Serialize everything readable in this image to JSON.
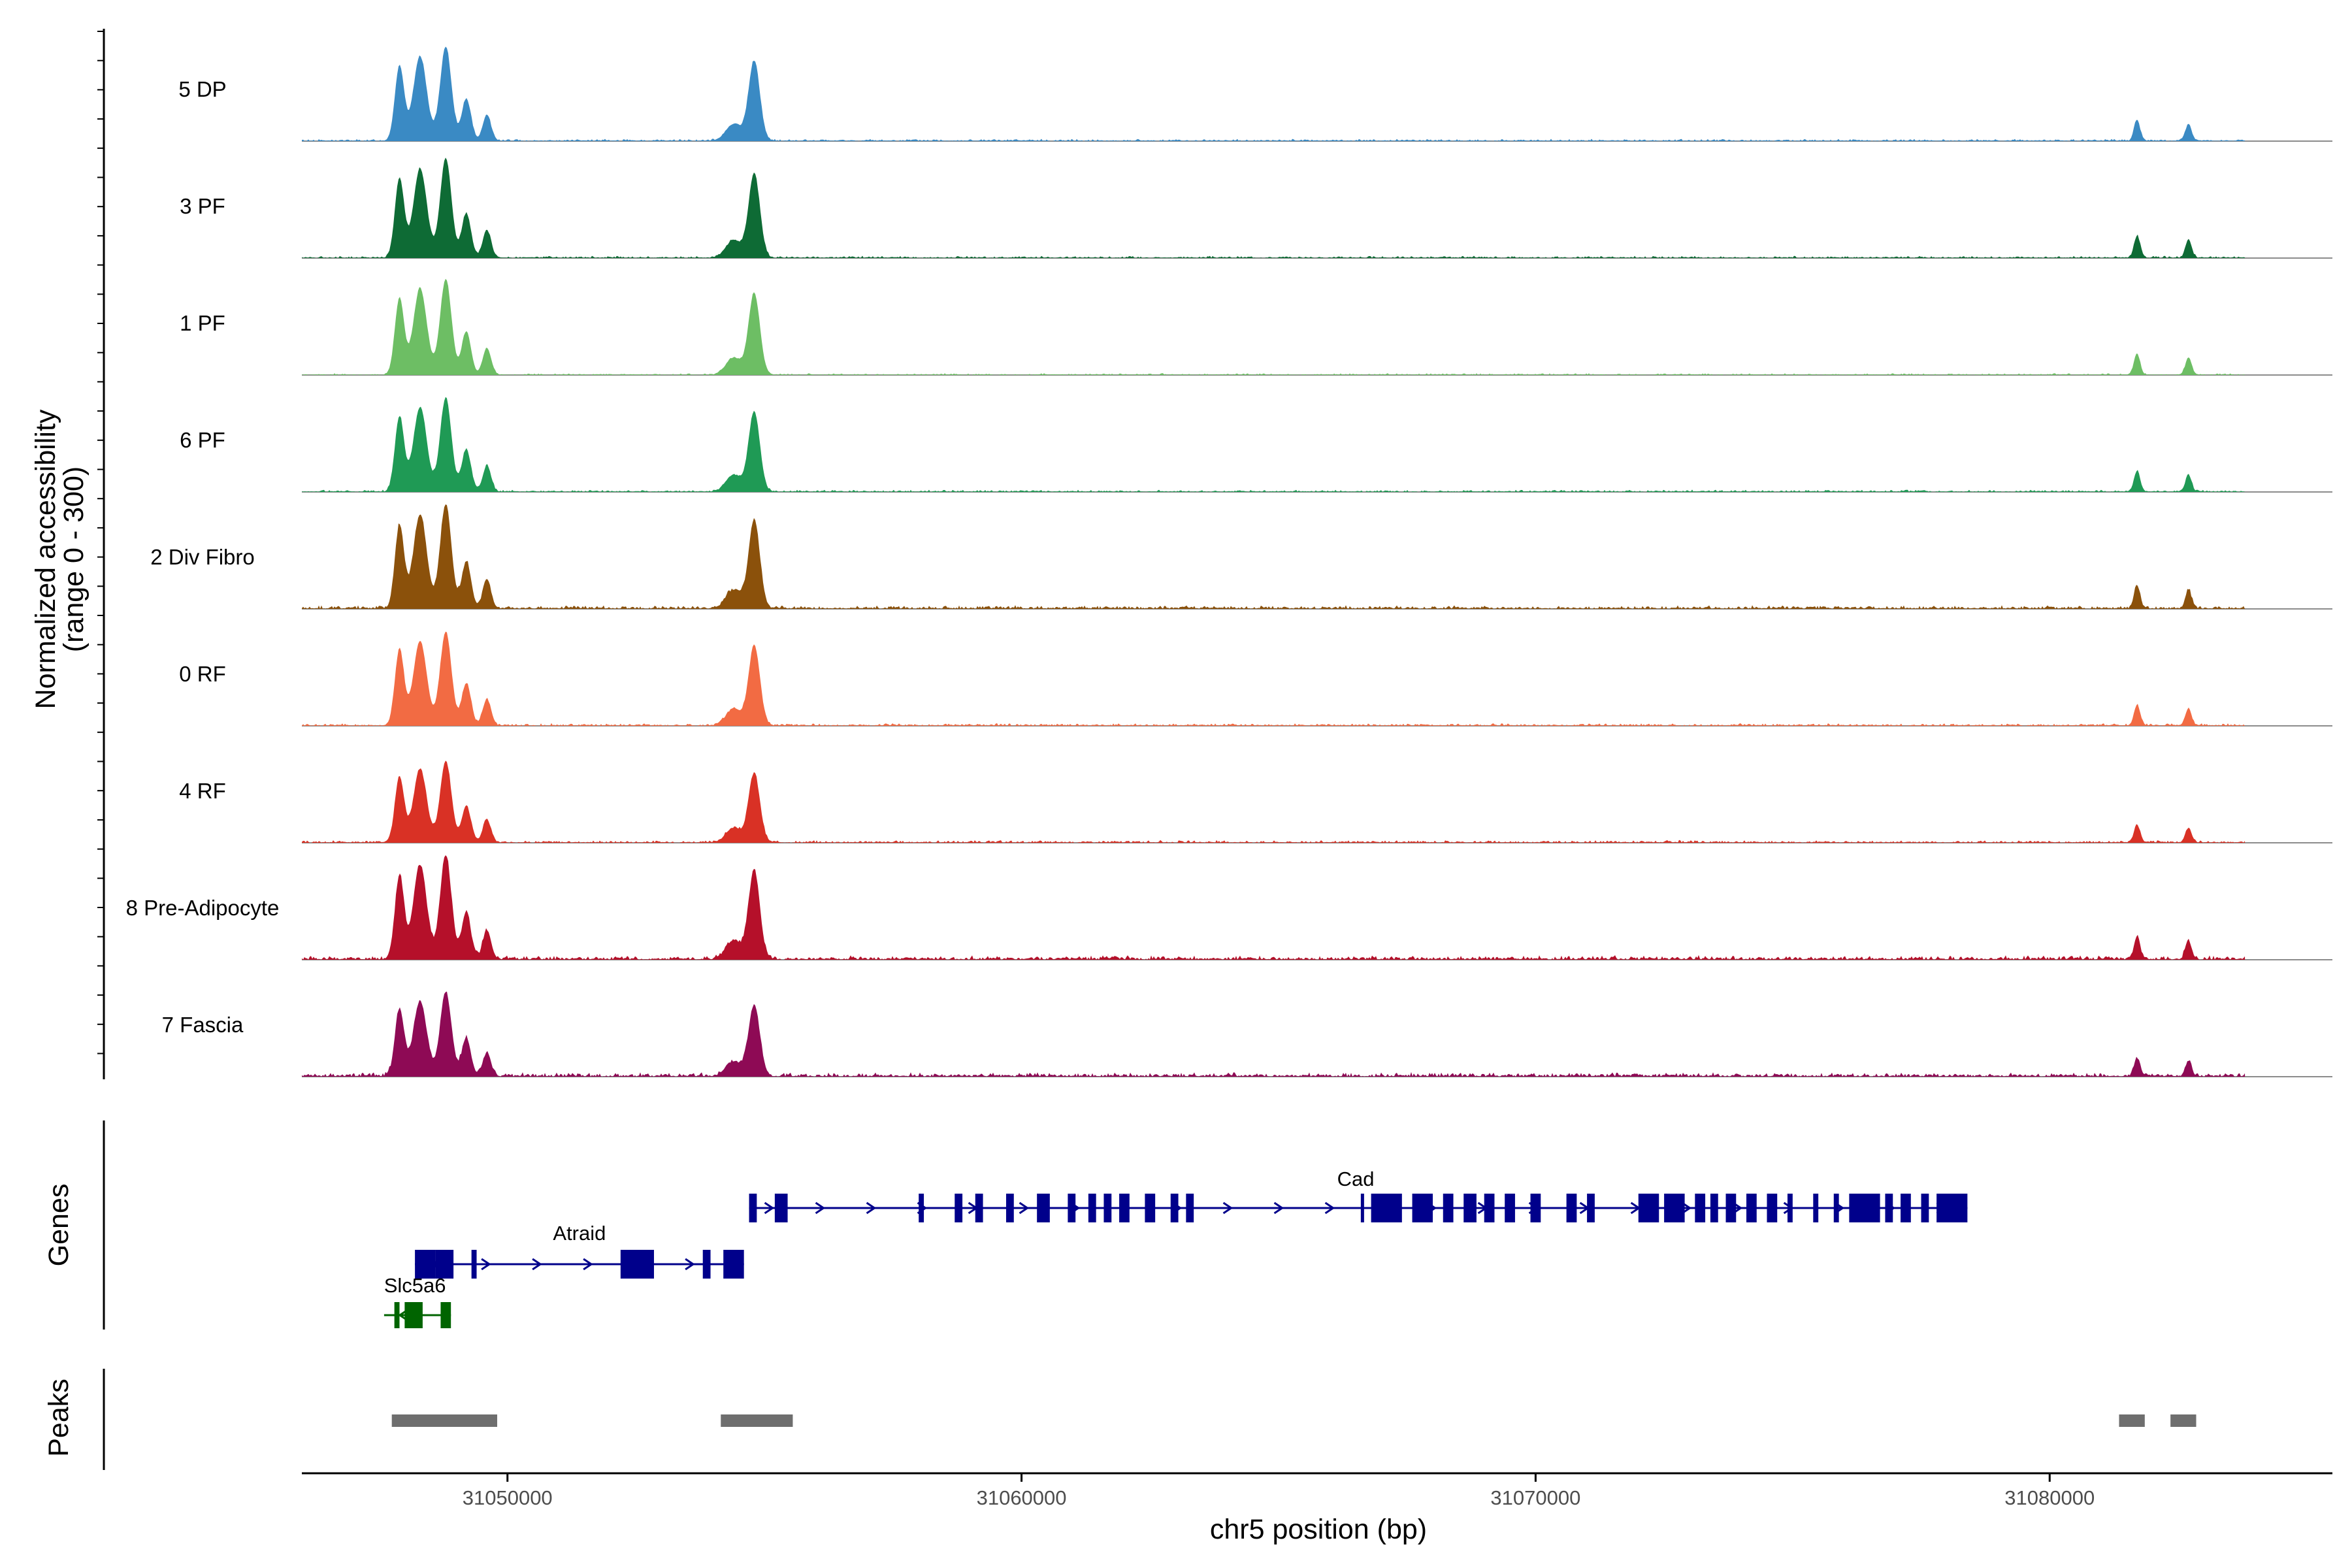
{
  "chart_data": {
    "type": "area",
    "title": "",
    "y_axis_label_line1": "Normalized accessibility",
    "y_axis_label_line2": "(range 0 - 300)",
    "yrange": [
      0,
      300
    ],
    "xlabel": "chr5 position (bp)",
    "xlim": [
      31046000,
      31085500
    ],
    "x_ticks": [
      {
        "value": 31050000,
        "label": "31050000"
      },
      {
        "value": 31060000,
        "label": "31060000"
      },
      {
        "value": 31070000,
        "label": "31070000"
      },
      {
        "value": 31080000,
        "label": "31080000"
      }
    ],
    "coverage_extent": [
      31046000,
      31083800
    ],
    "track_peaks": [
      {
        "center": 31047900,
        "width": 90,
        "rel": 0.8
      },
      {
        "center": 31048300,
        "width": 130,
        "rel": 0.9
      },
      {
        "center": 31048800,
        "width": 110,
        "rel": 1.0
      },
      {
        "center": 31049200,
        "width": 90,
        "rel": 0.45
      },
      {
        "center": 31049600,
        "width": 80,
        "rel": 0.28
      },
      {
        "center": 31054400,
        "width": 150,
        "rel": 0.18
      },
      {
        "center": 31054800,
        "width": 110,
        "rel": 0.85
      },
      {
        "center": 31081700,
        "width": 60,
        "rel": 0.22
      },
      {
        "center": 31082700,
        "width": 60,
        "rel": 0.18
      }
    ],
    "series": [
      {
        "name": "5 DP",
        "color": "#3a8ac4",
        "peak_scale": 0.9,
        "noise": 0.015
      },
      {
        "name": "3 PF",
        "color": "#0e6b35",
        "peak_scale": 0.95,
        "noise": 0.015
      },
      {
        "name": "1 PF",
        "color": "#6dbe64",
        "peak_scale": 0.92,
        "noise": 0.012
      },
      {
        "name": "6 PF",
        "color": "#1f9a55",
        "peak_scale": 0.9,
        "noise": 0.015
      },
      {
        "name": "2 Div Fibro",
        "color": "#8b510b",
        "peak_scale": 1.0,
        "noise": 0.025
      },
      {
        "name": "0 RF",
        "color": "#f26b43",
        "peak_scale": 0.9,
        "noise": 0.018
      },
      {
        "name": "4 RF",
        "color": "#d93125",
        "peak_scale": 0.78,
        "noise": 0.018
      },
      {
        "name": "8 Pre-Adipocyte",
        "color": "#b5102a",
        "peak_scale": 1.0,
        "noise": 0.03
      },
      {
        "name": "7 Fascia",
        "color": "#8e0a55",
        "peak_scale": 0.8,
        "noise": 0.03
      }
    ],
    "genes_panel_label": "Genes",
    "peaks_panel_label": "Peaks",
    "genes": [
      {
        "name": "Cad",
        "strand": "+",
        "start": 31054700,
        "end": 31078400,
        "color": "#00008b",
        "row": 0,
        "exons": [
          [
            31054700,
            31054850
          ],
          [
            31055200,
            31055450
          ],
          [
            31058000,
            31058100
          ],
          [
            31058700,
            31058850
          ],
          [
            31059100,
            31059250
          ],
          [
            31059700,
            31059850
          ],
          [
            31060300,
            31060550
          ],
          [
            31060900,
            31061050
          ],
          [
            31061300,
            31061450
          ],
          [
            31061600,
            31061750
          ],
          [
            31061900,
            31062100
          ],
          [
            31062400,
            31062600
          ],
          [
            31062900,
            31063050
          ],
          [
            31063200,
            31063350
          ],
          [
            31066600,
            31066640
          ],
          [
            31066800,
            31067400
          ],
          [
            31067600,
            31068000
          ],
          [
            31068200,
            31068400
          ],
          [
            31068600,
            31068850
          ],
          [
            31069000,
            31069200
          ],
          [
            31069400,
            31069600
          ],
          [
            31069900,
            31070100
          ],
          [
            31070600,
            31070800
          ],
          [
            31071000,
            31071150
          ],
          [
            31072000,
            31072400
          ],
          [
            31072500,
            31072900
          ],
          [
            31073100,
            31073300
          ],
          [
            31073400,
            31073550
          ],
          [
            31073700,
            31073900
          ],
          [
            31074100,
            31074300
          ],
          [
            31074500,
            31074700
          ],
          [
            31074900,
            31075000
          ],
          [
            31075400,
            31075500
          ],
          [
            31075800,
            31075900
          ],
          [
            31076100,
            31076700
          ],
          [
            31076800,
            31076950
          ],
          [
            31077100,
            31077300
          ],
          [
            31077500,
            31077650
          ],
          [
            31077800,
            31078400
          ]
        ]
      },
      {
        "name": "Atraid",
        "strand": "+",
        "start": 31048200,
        "end": 31054600,
        "color": "#00008b",
        "row": 1,
        "exons": [
          [
            31048200,
            31048600
          ],
          [
            31048600,
            31048950
          ],
          [
            31049300,
            31049400
          ],
          [
            31052200,
            31052850
          ],
          [
            31053800,
            31053950
          ],
          [
            31054200,
            31054600
          ]
        ]
      },
      {
        "name": "Slc5a6",
        "strand": "-",
        "start": 31047600,
        "end": 31048900,
        "color": "#006400",
        "row": 2,
        "exons": [
          [
            31047800,
            31047900
          ],
          [
            31048000,
            31048350
          ],
          [
            31048700,
            31048900
          ]
        ]
      }
    ],
    "peak_regions": [
      [
        31047750,
        31049800
      ],
      [
        31054150,
        31055550
      ],
      [
        31081350,
        31081850
      ],
      [
        31082350,
        31082850
      ]
    ]
  }
}
